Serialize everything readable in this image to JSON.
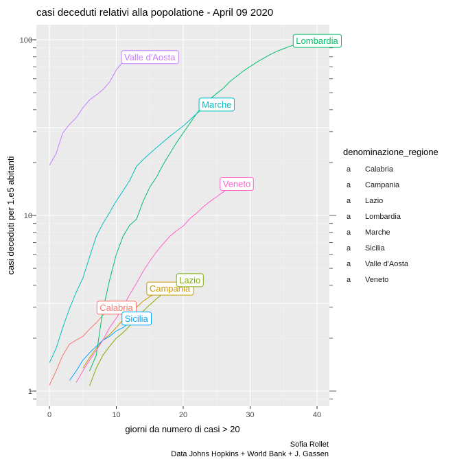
{
  "chart_data": {
    "type": "line",
    "title": "casi deceduti relativi alla popolatione - April 09 2020",
    "xlabel": "giorni da numero di casi >  20",
    "ylabel": "casi deceduti  per 1.e5 abitanti",
    "y_scale": "log10",
    "xlim": [
      -2,
      42
    ],
    "ylim": [
      0.8,
      125
    ],
    "x_ticks": [
      0,
      10,
      20,
      30,
      40
    ],
    "x_tick_labels": [
      "0",
      "10",
      "20",
      "30",
      "40"
    ],
    "y_ticks": [
      1,
      10,
      100
    ],
    "y_tick_labels": [
      "1",
      "10",
      "100"
    ],
    "grid": true,
    "legend": {
      "title": "denominazione_regione",
      "position": "right",
      "symbol": "a"
    },
    "caption": [
      "Sofia Rollet",
      "Data Johns Hopkins + World Bank + J. Gassen"
    ],
    "series": [
      {
        "name": "Calabria",
        "color": "#F8766D",
        "label": "Calabria",
        "x": [
          0,
          1,
          2,
          3,
          4,
          5,
          6,
          7,
          8,
          9,
          10
        ],
        "y": [
          1.08,
          1.3,
          1.6,
          1.85,
          1.95,
          2.05,
          2.25,
          2.45,
          2.7,
          2.95,
          3.0
        ]
      },
      {
        "name": "Campania",
        "color": "#CD9600",
        "label": "Campania",
        "x": [
          5,
          6,
          7,
          8,
          9,
          10,
          11,
          12,
          13,
          14,
          15,
          16,
          17,
          18
        ],
        "y": [
          1.35,
          1.55,
          1.75,
          1.95,
          2.1,
          2.3,
          2.55,
          2.75,
          3.0,
          3.25,
          3.45,
          3.6,
          3.75,
          3.85
        ]
      },
      {
        "name": "Lazio",
        "color": "#7CAE00",
        "label": "Lazio",
        "x": [
          6,
          7,
          8,
          9,
          10,
          11,
          12,
          13,
          14,
          15,
          16,
          17,
          18,
          19,
          20,
          21
        ],
        "y": [
          1.07,
          1.35,
          1.6,
          1.8,
          2.0,
          2.15,
          2.35,
          2.6,
          2.85,
          3.1,
          3.35,
          3.6,
          3.8,
          4.0,
          4.15,
          4.3
        ]
      },
      {
        "name": "Lombardia",
        "color": "#00BE67",
        "label": "Lombardia",
        "x": [
          6,
          7,
          8,
          9,
          10,
          11,
          12,
          13,
          14,
          15,
          16,
          17,
          18,
          19,
          20,
          21,
          22,
          23,
          24,
          25,
          26,
          27,
          28,
          29,
          30,
          31,
          32,
          33,
          34,
          35,
          36,
          37,
          38,
          39,
          40
        ],
        "y": [
          1.3,
          1.6,
          2.9,
          4.3,
          6.0,
          7.6,
          8.8,
          9.5,
          12.0,
          14.5,
          16.5,
          19.5,
          22.5,
          26.0,
          29.5,
          33.5,
          38.0,
          43.0,
          46.0,
          49.5,
          53.0,
          58.0,
          62.0,
          66.5,
          70.5,
          74.5,
          78.5,
          82.5,
          86.0,
          89.0,
          92.0,
          94.5,
          96.5,
          98.0,
          99.0
        ]
      },
      {
        "name": "Marche",
        "color": "#00BFC4",
        "label": "Marche",
        "x": [
          0,
          1,
          2,
          3,
          4,
          5,
          6,
          7,
          8,
          9,
          10,
          11,
          12,
          13,
          14,
          15,
          16,
          17,
          18,
          19,
          20,
          21,
          22,
          23,
          24,
          25
        ],
        "y": [
          1.45,
          1.75,
          2.3,
          2.95,
          3.65,
          4.4,
          5.8,
          7.6,
          9.0,
          10.4,
          12.1,
          13.8,
          15.8,
          19.0,
          20.8,
          22.5,
          24.3,
          26.2,
          28.2,
          30.2,
          32.3,
          35.0,
          38.0,
          40.5,
          42.0,
          43.0
        ]
      },
      {
        "name": "Sicilia",
        "color": "#00A9FF",
        "label": "Sicilia",
        "x": [
          3,
          4,
          5,
          6,
          7,
          8,
          9,
          10,
          11,
          12,
          13
        ],
        "y": [
          1.15,
          1.3,
          1.5,
          1.65,
          1.8,
          1.95,
          2.05,
          2.2,
          2.3,
          2.45,
          2.6
        ]
      },
      {
        "name": "Valle d'Aosta",
        "color": "#C77CFF",
        "label": "Valle d'Aosta",
        "x": [
          0,
          1,
          2,
          3,
          4,
          5,
          6,
          7,
          8,
          9,
          10,
          11,
          12,
          13,
          14,
          15
        ],
        "y": [
          19.3,
          22.5,
          29.5,
          33.0,
          36.0,
          41.0,
          45.5,
          48.5,
          52.0,
          57.5,
          67.5,
          75.0,
          77.5,
          79.0,
          80.0,
          80.0
        ]
      },
      {
        "name": "Veneto",
        "color": "#FF61CC",
        "label": "Veneto",
        "x": [
          4,
          5,
          6,
          7,
          8,
          9,
          10,
          11,
          12,
          13,
          14,
          15,
          16,
          17,
          18,
          19,
          20,
          21,
          22,
          23,
          24,
          25,
          26,
          27,
          28
        ],
        "y": [
          1.12,
          1.3,
          1.5,
          1.7,
          1.95,
          2.3,
          2.6,
          3.0,
          3.55,
          4.1,
          4.8,
          5.5,
          6.2,
          6.9,
          7.6,
          8.2,
          8.7,
          9.6,
          10.3,
          11.2,
          12.0,
          12.8,
          13.6,
          14.6,
          15.2
        ]
      }
    ]
  }
}
